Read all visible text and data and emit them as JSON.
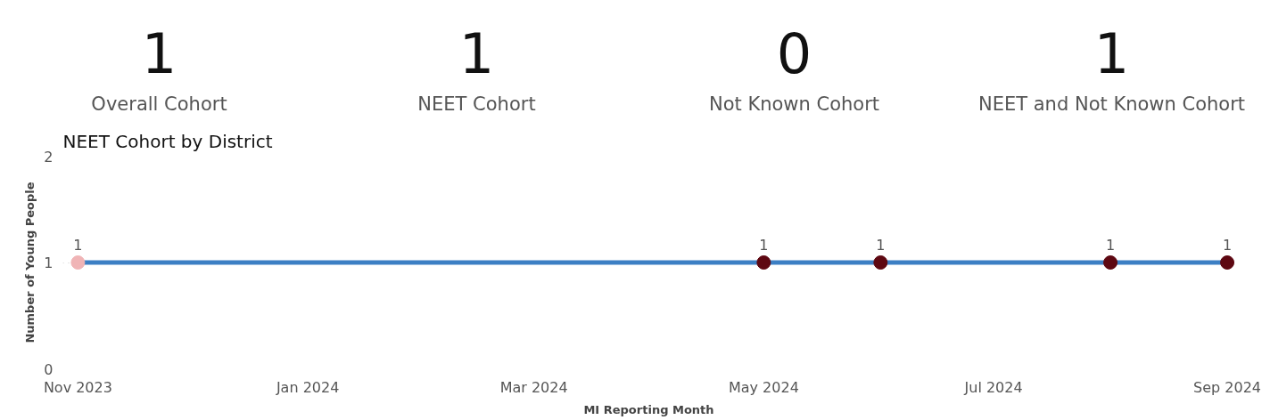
{
  "chart_data": [
    {
      "type": "other",
      "title": "Overall Cohort",
      "values": [
        1
      ],
      "data_labels": true
    },
    {
      "type": "other",
      "title": "NEET Cohort",
      "values": [
        1
      ],
      "data_labels": true
    },
    {
      "type": "other",
      "title": "Not Known Cohort",
      "values": [
        0
      ],
      "data_labels": true
    },
    {
      "type": "other",
      "title": "NEET and Not Known Cohort",
      "values": [
        1
      ],
      "data_labels": true
    },
    {
      "type": "line",
      "title": "NEET Cohort by District",
      "xlabel": "MI Reporting Month",
      "ylabel": "Number of Young People",
      "x": [
        "2023-11-01",
        "2024-05-01",
        "2024-06-01",
        "2024-08-01",
        "2024-09-01"
      ],
      "series": [
        {
          "color": "#3c7fc4",
          "colors": [
            "#f0b4b6",
            "#5e0812",
            "#5e0812",
            "#5e0812",
            "#5e0812"
          ],
          "values": [
            1,
            1,
            1,
            1,
            1
          ]
        }
      ],
      "xlim": [
        "2023-10-28",
        "2024-09-03"
      ],
      "xticks": [
        {
          "value": "2023-11-01",
          "label": "Nov 2023"
        },
        {
          "value": "2024-01-01",
          "label": "Jan 2024"
        },
        {
          "value": "2024-03-01",
          "label": "Mar 2024"
        },
        {
          "value": "2024-05-01",
          "label": "May 2024"
        },
        {
          "value": "2024-07-01",
          "label": "Jul 2024"
        },
        {
          "value": "2024-09-01",
          "label": "Sep 2024"
        }
      ],
      "ylim": [
        0,
        2
      ],
      "yticks": [
        0,
        1,
        2
      ],
      "grid": "y",
      "marker": "circle",
      "line_style": "solid",
      "data_labels": true
    }
  ]
}
